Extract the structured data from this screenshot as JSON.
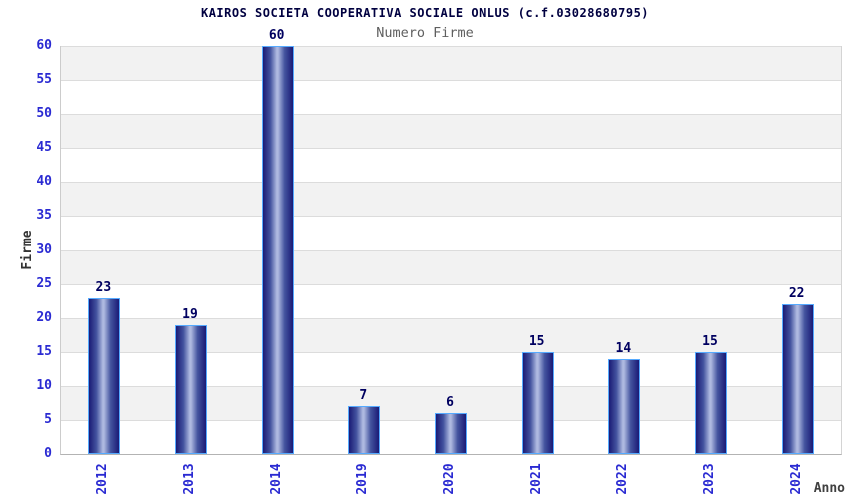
{
  "chart_data": {
    "type": "bar",
    "title": "KAIROS SOCIETA COOPERATIVA SOCIALE ONLUS (c.f.03028680795)",
    "subtitle": "Numero Firme",
    "xlabel": "Anno",
    "ylabel": "Firme",
    "categories": [
      "2012",
      "2013",
      "2014",
      "2019",
      "2020",
      "2021",
      "2022",
      "2023",
      "2024"
    ],
    "values": [
      23,
      19,
      60,
      7,
      6,
      15,
      14,
      15,
      22
    ],
    "ylim": [
      0,
      60
    ],
    "y_ticks": [
      0,
      5,
      10,
      15,
      20,
      25,
      30,
      35,
      40,
      45,
      50,
      55,
      60
    ],
    "grid": "horizontal alternating bands",
    "legend": "none"
  },
  "colors": {
    "background": "#ffffff",
    "band_gray": "#f2f2f2",
    "band_white": "#ffffff",
    "grid_line": "#dcdcdc",
    "bar_dark": "#1a1a75",
    "bar_mid": "#44549f",
    "bar_light": "#aeb9e0",
    "bar_border": "#55aaff",
    "tick_label_blue": "#2a2ad2",
    "value_label": "#000060",
    "title_color": "#000040",
    "subtitle_color": "#5f5f5f",
    "axis_label_color": "#333333"
  }
}
